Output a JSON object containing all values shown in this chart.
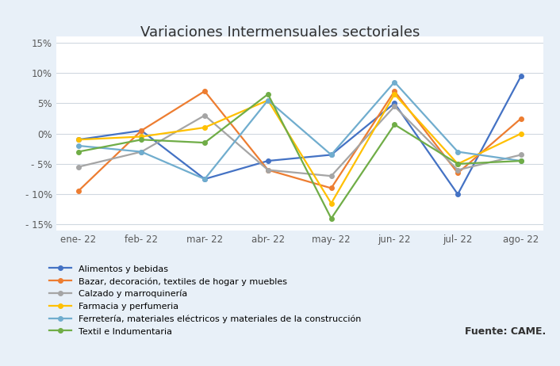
{
  "title": "Variaciones Intermensuales sectoriales",
  "months": [
    "ene- 22",
    "feb- 22",
    "mar- 22",
    "abr- 22",
    "may- 22",
    "jun- 22",
    "jul- 22",
    "ago- 22"
  ],
  "series": [
    {
      "label": "Alimentos y bebidas",
      "color": "#4472C4",
      "values": [
        -1.0,
        0.5,
        -7.5,
        -4.5,
        -3.5,
        5.0,
        -10.0,
        9.5
      ]
    },
    {
      "label": "Bazar, decoración, textiles de hogar y muebles",
      "color": "#ED7D31",
      "values": [
        -9.5,
        0.5,
        7.0,
        -6.0,
        -9.0,
        7.0,
        -6.5,
        2.5
      ]
    },
    {
      "label": "Calzado y marroquinería",
      "color": "#A5A5A5",
      "values": [
        -5.5,
        -3.0,
        3.0,
        -6.0,
        -7.0,
        4.5,
        -6.0,
        -3.5
      ]
    },
    {
      "label": "Farmacia y perfumeria",
      "color": "#FFC000",
      "values": [
        -1.0,
        -0.5,
        1.0,
        5.5,
        -11.5,
        6.5,
        -5.0,
        0.0
      ]
    },
    {
      "label": "Ferretería, materiales eléctricos y materiales de la construcción",
      "color": "#70ADCE",
      "values": [
        -2.0,
        -3.0,
        -7.5,
        5.5,
        -3.5,
        8.5,
        -3.0,
        -4.5
      ]
    },
    {
      "label": "Textil e Indumentaria",
      "color": "#70AD47",
      "values": [
        -3.0,
        -1.0,
        -1.5,
        6.5,
        -14.0,
        1.5,
        -5.0,
        -4.5
      ]
    }
  ],
  "ylim": [
    -16,
    16
  ],
  "yticks": [
    -15,
    -10,
    -5,
    0,
    5,
    10,
    15
  ],
  "ytick_labels": [
    "- 15%",
    "- 10%",
    "- 5%",
    "0%",
    "5%",
    "10%",
    "15%"
  ],
  "background_color": "#E8F0F8",
  "plot_bg_color": "#FFFFFF",
  "source_text": "Fuente: CAME.",
  "grid_color": "#D0D8E0"
}
